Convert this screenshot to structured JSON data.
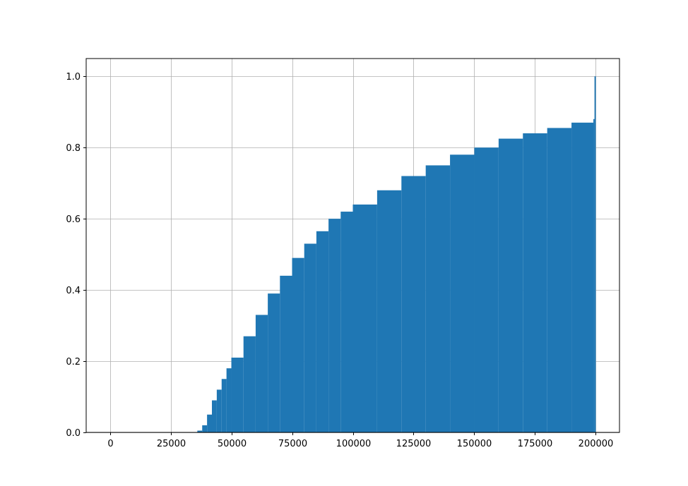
{
  "chart_data": {
    "type": "bar",
    "title": "",
    "xlabel": "",
    "ylabel": "",
    "xlim": [
      -9750,
      209750
    ],
    "ylim": [
      0.0,
      1.05
    ],
    "grid": true,
    "x_ticks": [
      0,
      25000,
      50000,
      75000,
      100000,
      125000,
      150000,
      175000,
      200000
    ],
    "x_tick_labels": [
      "0",
      "25000",
      "50000",
      "75000",
      "100000",
      "125000",
      "150000",
      "175000",
      "200000"
    ],
    "y_ticks": [
      0.0,
      0.2,
      0.4,
      0.6,
      0.8,
      1.0
    ],
    "y_tick_labels": [
      "0.0",
      "0.2",
      "0.4",
      "0.6",
      "0.8",
      "1.0"
    ],
    "series": [
      {
        "color": "#1f77b4",
        "x": [
          34000,
          36000,
          38000,
          40000,
          42000,
          44000,
          46000,
          48000,
          50000,
          55000,
          60000,
          65000,
          70000,
          75000,
          80000,
          85000,
          90000,
          95000,
          100000,
          110000,
          120000,
          130000,
          140000,
          150000,
          160000,
          170000,
          180000,
          190000,
          199000,
          199500,
          200000
        ],
        "values": [
          0.0,
          0.005,
          0.02,
          0.05,
          0.09,
          0.12,
          0.15,
          0.18,
          0.21,
          0.27,
          0.33,
          0.39,
          0.44,
          0.49,
          0.53,
          0.565,
          0.6,
          0.62,
          0.64,
          0.68,
          0.72,
          0.75,
          0.78,
          0.8,
          0.825,
          0.84,
          0.855,
          0.87,
          0.88,
          1.0,
          1.0
        ]
      }
    ]
  }
}
